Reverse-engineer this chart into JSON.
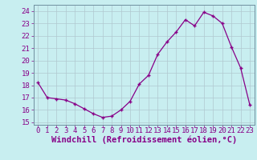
{
  "x": [
    0,
    1,
    2,
    3,
    4,
    5,
    6,
    7,
    8,
    9,
    10,
    11,
    12,
    13,
    14,
    15,
    16,
    17,
    18,
    19,
    20,
    21,
    22,
    23
  ],
  "y": [
    18.2,
    17.0,
    16.9,
    16.8,
    16.5,
    16.1,
    15.7,
    15.4,
    15.5,
    16.0,
    16.7,
    18.1,
    18.8,
    20.5,
    21.5,
    22.3,
    23.3,
    22.8,
    23.9,
    23.6,
    23.0,
    21.1,
    19.4,
    16.4
  ],
  "ylim": [
    14.8,
    24.5
  ],
  "yticks": [
    15,
    16,
    17,
    18,
    19,
    20,
    21,
    22,
    23,
    24
  ],
  "xticks": [
    0,
    1,
    2,
    3,
    4,
    5,
    6,
    7,
    8,
    9,
    10,
    11,
    12,
    13,
    14,
    15,
    16,
    17,
    18,
    19,
    20,
    21,
    22,
    23
  ],
  "xlabel": "Windchill (Refroidissement éolien,°C)",
  "line_color": "#880088",
  "marker": "+",
  "bg_color": "#c8eef0",
  "grid_color": "#b0c8d0",
  "label_fontsize": 7.5,
  "tick_fontsize": 6.5
}
